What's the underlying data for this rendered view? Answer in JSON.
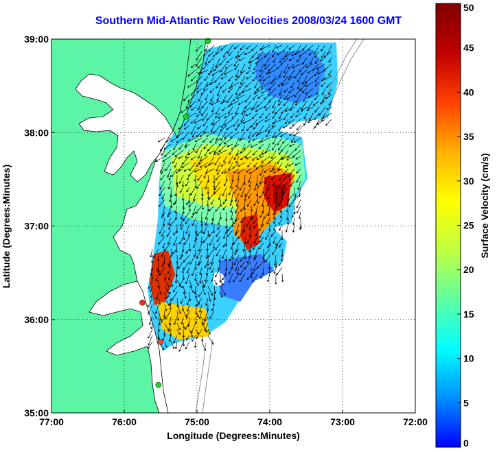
{
  "title": "Southern Mid-Atlantic Raw Velocities 2008/03/24 1600 GMT",
  "map": {
    "xlabel": "Longitude (Degrees:Minutes)",
    "ylabel": "Latitude (Degrees:Minutes)",
    "lon_range": [
      -77,
      -72
    ],
    "lat_range": [
      35,
      39
    ],
    "x_ticks": [
      {
        "value": -77,
        "label": "77:00"
      },
      {
        "value": -76,
        "label": "76:00"
      },
      {
        "value": -75,
        "label": "75:00"
      },
      {
        "value": -74,
        "label": "74:00"
      },
      {
        "value": -73,
        "label": "73:00"
      },
      {
        "value": -72,
        "label": "72:00"
      }
    ],
    "y_ticks": [
      {
        "value": 35,
        "label": "35:00"
      },
      {
        "value": 36,
        "label": "36:00"
      },
      {
        "value": 37,
        "label": "37:00"
      },
      {
        "value": 38,
        "label": "38:00"
      },
      {
        "value": 39,
        "label": "39:00"
      }
    ],
    "grid": "dotted",
    "land_color": "#5cf5a5",
    "stations": [
      {
        "lon": -74.85,
        "lat": 38.98,
        "color": "#20d020"
      },
      {
        "lon": -75.15,
        "lat": 38.17,
        "color": "#20d020"
      },
      {
        "lon": -75.75,
        "lat": 36.18,
        "color": "#ff2020"
      },
      {
        "lon": -75.5,
        "lat": 35.76,
        "color": "#ff4040"
      },
      {
        "lon": -75.53,
        "lat": 35.3,
        "color": "#20d020"
      }
    ]
  },
  "colorbar": {
    "label": "Surface Velocity (cm/s)",
    "min": 0,
    "max": 50,
    "ticks": [
      {
        "value": 0,
        "label": "0"
      },
      {
        "value": 5,
        "label": "5"
      },
      {
        "value": 10,
        "label": "10"
      },
      {
        "value": 15,
        "label": "15"
      },
      {
        "value": 20,
        "label": "20"
      },
      {
        "value": 25,
        "label": "25"
      },
      {
        "value": 30,
        "label": "30"
      },
      {
        "value": 35,
        "label": "35"
      },
      {
        "value": 40,
        "label": "40"
      },
      {
        "value": 45,
        "label": "45"
      },
      {
        "value": 50,
        "label": "50"
      }
    ],
    "colors": [
      "#0000ff",
      "#0090ff",
      "#00ffff",
      "#60ffa0",
      "#c0ff40",
      "#ffff00",
      "#ffb000",
      "#ff4000",
      "#c00000",
      "#800000"
    ]
  }
}
